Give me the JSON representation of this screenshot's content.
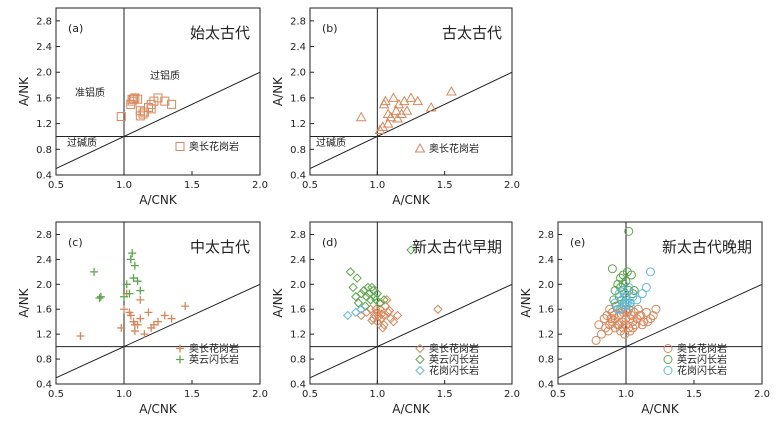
{
  "colors": {
    "tonalite": "#d9875a",
    "trondhjemite": "#5aa84a",
    "granodiorite": "#5fb8e6",
    "axis": "#222222"
  },
  "chart_data": [
    {
      "type": "scatter",
      "panel_label": "(a)",
      "title": "始太古代",
      "xlabel": "A/CNK",
      "ylabel": "A/NK",
      "xlim": [
        0.5,
        2.0
      ],
      "ylim": [
        0.4,
        3.0
      ],
      "xticks": [
        "0.5",
        "1.0",
        "1.5",
        "2.0"
      ],
      "yticks": [
        "0.4",
        "0.8",
        "1.2",
        "1.6",
        "2.0",
        "2.4",
        "2.8"
      ],
      "field_labels": [
        "准铝质",
        "过铝质",
        "过碱质"
      ],
      "series": [
        {
          "name": "奥长花岗岩",
          "marker": "square",
          "color": "#d9875a",
          "x": [
            0.98,
            1.05,
            1.06,
            1.07,
            1.08,
            1.06,
            1.1,
            1.12,
            1.14,
            1.15,
            1.18,
            1.2,
            1.22,
            1.25,
            1.3,
            1.35,
            1.12,
            1.2
          ],
          "y": [
            1.31,
            1.5,
            1.55,
            1.58,
            1.6,
            1.58,
            1.58,
            1.32,
            1.35,
            1.38,
            1.45,
            1.5,
            1.55,
            1.6,
            1.55,
            1.5,
            1.4,
            1.43
          ]
        }
      ]
    },
    {
      "type": "scatter",
      "panel_label": "(b)",
      "title": "古太古代",
      "xlabel": "A/CNK",
      "ylabel": "A/NK",
      "xlim": [
        0.5,
        2.0
      ],
      "ylim": [
        0.4,
        3.0
      ],
      "xticks": [
        "0.5",
        "1.0",
        "1.5",
        "2.0"
      ],
      "yticks": [
        "0.4",
        "0.8",
        "1.2",
        "1.6",
        "2.0",
        "2.4",
        "2.8"
      ],
      "field_labels": [
        "过碱质"
      ],
      "series": [
        {
          "name": "奥长花岗岩",
          "marker": "triangle",
          "color": "#d9875a",
          "x": [
            0.88,
            1.02,
            1.04,
            1.05,
            1.06,
            1.08,
            1.1,
            1.12,
            1.14,
            1.16,
            1.18,
            1.2,
            1.22,
            1.25,
            1.3,
            1.4,
            1.55,
            1.08,
            1.15
          ],
          "y": [
            1.3,
            1.1,
            1.15,
            1.5,
            1.55,
            1.2,
            1.3,
            1.6,
            1.4,
            1.5,
            1.35,
            1.55,
            1.4,
            1.6,
            1.55,
            1.45,
            1.7,
            1.35,
            1.28
          ]
        }
      ]
    },
    {
      "type": "scatter",
      "panel_label": "(c)",
      "title": "中太古代",
      "xlabel": "A/CNK",
      "ylabel": "A/NK",
      "xlim": [
        0.5,
        2.0
      ],
      "ylim": [
        0.4,
        3.0
      ],
      "xticks": [
        "0.5",
        "1.0",
        "1.5",
        "2.0"
      ],
      "yticks": [
        "0.4",
        "0.8",
        "1.2",
        "1.6",
        "2.0",
        "2.4",
        "2.8"
      ],
      "series": [
        {
          "name": "奥长花岗岩",
          "marker": "plus",
          "color": "#d9875a",
          "x": [
            0.68,
            0.98,
            1.0,
            1.02,
            1.05,
            1.07,
            1.08,
            1.1,
            1.12,
            1.15,
            1.18,
            1.2,
            1.22,
            1.25,
            1.3,
            1.35,
            1.45,
            1.08,
            1.04,
            1.12
          ],
          "y": [
            1.17,
            1.3,
            1.6,
            1.85,
            1.5,
            1.4,
            1.35,
            1.35,
            1.45,
            1.2,
            1.55,
            1.3,
            1.35,
            1.4,
            1.5,
            1.45,
            1.65,
            1.25,
            1.55,
            1.75
          ]
        },
        {
          "name": "英云闪长岩",
          "marker": "plus",
          "color": "#5aa84a",
          "x": [
            0.78,
            0.82,
            0.83,
            1.0,
            1.02,
            1.05,
            1.06,
            1.08,
            1.1,
            1.12,
            1.04,
            1.07
          ],
          "y": [
            2.2,
            1.78,
            1.8,
            1.8,
            2.0,
            2.4,
            2.5,
            2.3,
            2.05,
            1.9,
            1.85,
            2.1
          ]
        }
      ]
    },
    {
      "type": "scatter",
      "panel_label": "(d)",
      "title": "新太古代早期",
      "xlabel": "A/CNK",
      "ylabel": "A/NK",
      "xlim": [
        0.5,
        2.0
      ],
      "ylim": [
        0.4,
        3.0
      ],
      "xticks": [
        "0.5",
        "1.0",
        "1.5",
        "2.0"
      ],
      "yticks": [
        "0.4",
        "0.8",
        "1.2",
        "1.6",
        "2.0",
        "2.4",
        "2.8"
      ],
      "series": [
        {
          "name": "奥长花岗岩",
          "marker": "diamond",
          "color": "#d9875a",
          "x": [
            0.88,
            0.92,
            0.95,
            0.97,
            0.98,
            1.0,
            1.0,
            1.02,
            1.03,
            1.05,
            1.05,
            1.06,
            1.08,
            1.1,
            1.12,
            1.02,
            0.99,
            1.04,
            1.07,
            1.15,
            1.45,
            0.96,
            1.01,
            1.09,
            1.03
          ],
          "y": [
            1.5,
            1.55,
            1.6,
            1.45,
            1.5,
            1.55,
            1.4,
            1.6,
            1.45,
            1.5,
            1.35,
            1.65,
            1.55,
            1.45,
            1.4,
            1.7,
            1.6,
            1.3,
            1.75,
            1.5,
            1.6,
            1.42,
            1.48,
            1.58,
            1.52
          ]
        },
        {
          "name": "英云闪长岩",
          "marker": "diamond",
          "color": "#5aa84a",
          "x": [
            0.8,
            0.82,
            0.85,
            0.88,
            0.9,
            0.92,
            0.94,
            0.95,
            0.97,
            0.98,
            1.0,
            1.02,
            1.05,
            0.86,
            0.91,
            0.96,
            1.25,
            0.84,
            0.93,
            0.99
          ],
          "y": [
            2.2,
            1.95,
            2.1,
            1.85,
            1.9,
            1.8,
            1.85,
            1.75,
            1.9,
            1.8,
            1.85,
            1.7,
            1.75,
            1.7,
            1.65,
            1.95,
            2.55,
            1.8,
            1.95,
            1.75
          ]
        },
        {
          "name": "花岗闪长岩",
          "marker": "diamond",
          "color": "#5fb8e6",
          "x": [
            0.78,
            0.84,
            0.88
          ],
          "y": [
            1.5,
            1.55,
            1.6
          ]
        }
      ]
    },
    {
      "type": "scatter",
      "panel_label": "(e)",
      "title": "新太古代晚期",
      "xlabel": "A/CNK",
      "ylabel": "A/NK",
      "xlim": [
        0.5,
        2.0
      ],
      "ylim": [
        0.4,
        3.0
      ],
      "xticks": [
        "0.5",
        "1.0",
        "1.5",
        "2.0"
      ],
      "yticks": [
        "0.4",
        "0.8",
        "1.2",
        "1.6",
        "2.0",
        "2.4",
        "2.8"
      ],
      "series": [
        {
          "name": "奥长花岗岩",
          "marker": "circle",
          "color": "#d9875a",
          "x": [
            0.78,
            0.82,
            0.85,
            0.86,
            0.88,
            0.88,
            0.9,
            0.9,
            0.92,
            0.92,
            0.94,
            0.95,
            0.95,
            0.97,
            0.98,
            0.98,
            1.0,
            1.0,
            1.02,
            1.02,
            1.04,
            1.05,
            1.06,
            1.08,
            1.1,
            1.12,
            1.15,
            1.18,
            1.2,
            1.22,
            0.84,
            0.87,
            0.91,
            0.93,
            0.96,
            0.99,
            1.01,
            1.03,
            1.07,
            1.09,
            1.13,
            0.89,
            0.94,
            1.0,
            1.05,
            1.11,
            0.8,
            1.16,
            0.97,
            1.03
          ],
          "y": [
            1.1,
            1.2,
            1.3,
            1.5,
            1.35,
            1.6,
            1.4,
            1.55,
            1.3,
            1.45,
            1.6,
            1.35,
            1.5,
            1.4,
            1.3,
            1.55,
            1.45,
            1.35,
            1.6,
            1.3,
            1.5,
            1.4,
            1.55,
            1.45,
            1.5,
            1.35,
            1.55,
            1.45,
            1.5,
            1.6,
            1.45,
            1.25,
            1.5,
            1.65,
            1.25,
            1.2,
            1.55,
            1.45,
            1.35,
            1.6,
            1.4,
            1.45,
            1.35,
            1.6,
            1.3,
            1.5,
            1.35,
            1.4,
            1.6,
            1.25
          ]
        },
        {
          "name": "英云闪长岩",
          "marker": "circle",
          "color": "#5aa84a",
          "x": [
            0.9,
            0.92,
            0.94,
            0.95,
            0.96,
            0.97,
            0.98,
            0.99,
            1.0,
            1.01,
            1.02,
            1.03,
            1.04,
            1.05,
            0.93,
            0.96,
            1.0,
            1.02,
            0.99,
            1.06,
            0.91,
            0.98
          ],
          "y": [
            2.25,
            1.9,
            2.0,
            1.8,
            2.1,
            1.75,
            2.0,
            1.85,
            2.05,
            2.2,
            1.9,
            1.7,
            2.15,
            1.85,
            1.65,
            1.95,
            1.8,
            2.85,
            1.7,
            1.9,
            1.75,
            2.15
          ]
        },
        {
          "name": "花岗闪长岩",
          "marker": "circle",
          "color": "#5fb8e6",
          "x": [
            0.92,
            0.95,
            0.97,
            0.98,
            0.99,
            1.0,
            1.01,
            1.02,
            1.05,
            1.08,
            1.12,
            1.15,
            1.18,
            0.94,
            0.96,
            1.0,
            1.03
          ],
          "y": [
            1.7,
            1.85,
            1.75,
            1.9,
            1.65,
            1.8,
            1.7,
            1.95,
            1.8,
            1.75,
            1.85,
            1.95,
            2.2,
            1.6,
            1.6,
            1.7,
            1.65
          ]
        }
      ]
    }
  ]
}
